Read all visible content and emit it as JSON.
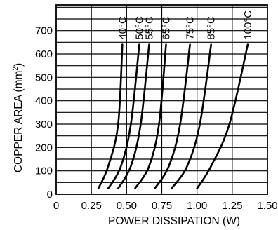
{
  "chart_data": {
    "type": "line",
    "title": "",
    "xlabel": "POWER DISSIPATION (W)",
    "ylabel": "COPPER AREA (mm²)",
    "ylabel_parts": {
      "main": "COPPER AREA (mm",
      "sup": "2",
      "close": ")"
    },
    "xlim": [
      0,
      1.5
    ],
    "ylim": [
      0,
      700
    ],
    "grid": true,
    "x_ticks": [
      "0",
      "0.25",
      "0.50",
      "0.75",
      "1.00",
      "1.25",
      "1.50"
    ],
    "x_tick_values": [
      0,
      0.25,
      0.5,
      0.75,
      1.0,
      1.25,
      1.5
    ],
    "y_ticks": [
      "0",
      "100",
      "200",
      "300",
      "400",
      "500",
      "600",
      "700"
    ],
    "y_tick_values": [
      0,
      100,
      200,
      300,
      400,
      500,
      600,
      700
    ],
    "series": [
      {
        "name": "40°C",
        "points": [
          [
            0.3,
            25
          ],
          [
            0.37,
            120
          ],
          [
            0.44,
            300
          ],
          [
            0.47,
            640
          ]
        ]
      },
      {
        "name": "50°C",
        "points": [
          [
            0.37,
            25
          ],
          [
            0.46,
            120
          ],
          [
            0.53,
            300
          ],
          [
            0.59,
            640
          ]
        ]
      },
      {
        "name": "55°C",
        "points": [
          [
            0.44,
            25
          ],
          [
            0.53,
            120
          ],
          [
            0.6,
            300
          ],
          [
            0.66,
            640
          ]
        ]
      },
      {
        "name": "65°C",
        "points": [
          [
            0.56,
            25
          ],
          [
            0.66,
            120
          ],
          [
            0.73,
            300
          ],
          [
            0.78,
            640
          ]
        ]
      },
      {
        "name": "75°C",
        "points": [
          [
            0.7,
            25
          ],
          [
            0.8,
            120
          ],
          [
            0.88,
            300
          ],
          [
            0.95,
            640
          ]
        ]
      },
      {
        "name": "85°C",
        "points": [
          [
            0.82,
            25
          ],
          [
            0.93,
            120
          ],
          [
            1.02,
            300
          ],
          [
            1.1,
            640
          ]
        ]
      },
      {
        "name": "100°C",
        "points": [
          [
            1.0,
            25
          ],
          [
            1.1,
            120
          ],
          [
            1.23,
            300
          ],
          [
            1.36,
            640
          ]
        ]
      }
    ]
  }
}
